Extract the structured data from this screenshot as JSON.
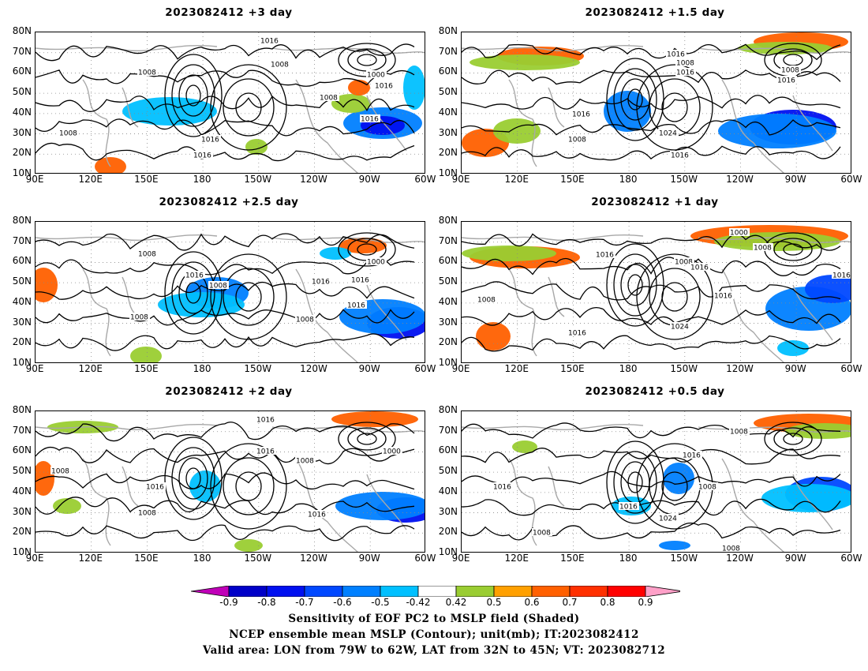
{
  "panels": [
    {
      "title": "2023082412 +3 day",
      "labels": [
        "1016",
        "1008",
        "1008",
        "1008",
        "1000",
        "1016",
        "1016",
        "1008",
        "1016",
        "1016"
      ]
    },
    {
      "title": "2023082412 +1.5 day",
      "labels": [
        "1016",
        "1008",
        "1016",
        "1008",
        "1016",
        "1016",
        "1024",
        "1008",
        "1016"
      ]
    },
    {
      "title": "2023082412 +2.5 day",
      "labels": [
        "1008",
        "1016",
        "1008",
        "1016",
        "1008",
        "1016",
        "1000",
        "1016",
        "1008"
      ]
    },
    {
      "title": "2023082412 +1 day",
      "labels": [
        "1000",
        "1008",
        "1016",
        "1008",
        "1016",
        "1016",
        "1024",
        "1016",
        "1008",
        "1016"
      ]
    },
    {
      "title": "2023082412 +2 day",
      "labels": [
        "1016",
        "1016",
        "1008",
        "1000",
        "1008",
        "1016",
        "1008",
        "1016"
      ]
    },
    {
      "title": "2023082412 +0.5 day",
      "labels": [
        "1008",
        "1016",
        "1016",
        "1008",
        "1024",
        "1016",
        "1008",
        "1008"
      ]
    }
  ],
  "lat_ticks": [
    "80N",
    "70N",
    "60N",
    "50N",
    "40N",
    "30N",
    "20N",
    "10N"
  ],
  "lon_ticks": [
    "90E",
    "120E",
    "150E",
    "180",
    "150W",
    "120W",
    "90W",
    "60W"
  ],
  "colorbar": {
    "ticks": [
      "-0.9",
      "-0.8",
      "-0.7",
      "-0.6",
      "-0.5",
      "-0.42",
      "0.42",
      "0.5",
      "0.6",
      "0.7",
      "0.8",
      "0.9"
    ],
    "colors": [
      "#c000b8",
      "#0000c8",
      "#0010f0",
      "#0048ff",
      "#0080ff",
      "#00c0ff",
      "#ffffff",
      "#9acd32",
      "#ffa000",
      "#ff6000",
      "#ff3000",
      "#ff0000",
      "#ffa0c8"
    ]
  },
  "footer": {
    "line1": "Sensitivity of EOF PC2 to MSLP field (Shaded)",
    "line2": "NCEP ensemble mean MSLP (Contour); unit(mb); IT:2023082412",
    "line3": "Valid area: LON from 79W to 62W, LAT from 32N to 45N; VT: 2023082712"
  }
}
